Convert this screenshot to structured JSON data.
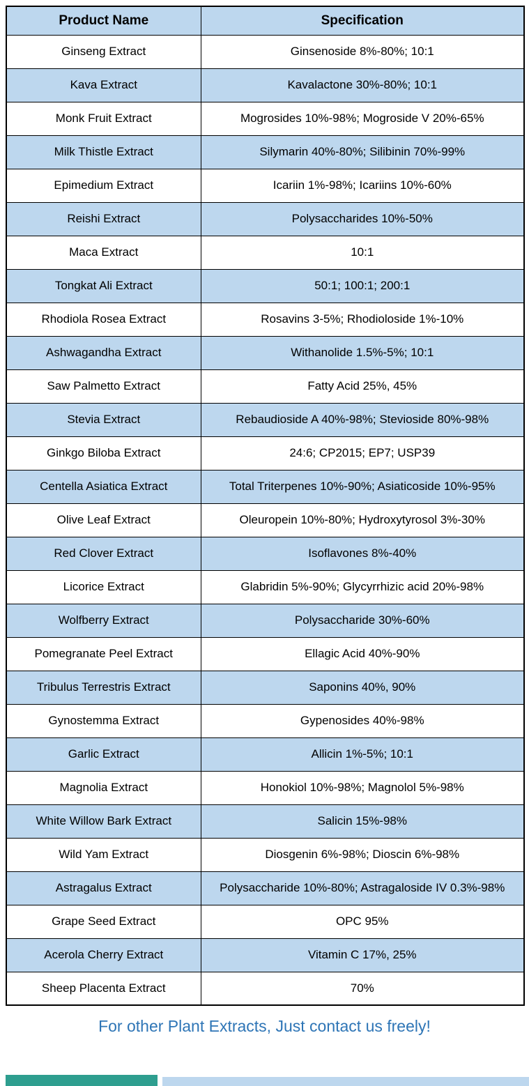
{
  "table": {
    "headers": [
      "Product Name",
      "Specification"
    ],
    "rows": [
      [
        "Ginseng Extract",
        "Ginsenoside 8%-80%; 10:1"
      ],
      [
        "Kava Extract",
        "Kavalactone 30%-80%; 10:1"
      ],
      [
        "Monk Fruit Extract",
        "Mogrosides 10%-98%; Mogroside V 20%-65%"
      ],
      [
        "Milk Thistle Extract",
        "Silymarin 40%-80%; Silibinin 70%-99%"
      ],
      [
        "Epimedium Extract",
        "Icariin 1%-98%; Icariins 10%-60%"
      ],
      [
        "Reishi Extract",
        "Polysaccharides 10%-50%"
      ],
      [
        "Maca Extract",
        "10:1"
      ],
      [
        "Tongkat Ali Extract",
        "50:1; 100:1; 200:1"
      ],
      [
        "Rhodiola Rosea Extract",
        "Rosavins 3-5%; Rhodioloside 1%-10%"
      ],
      [
        "Ashwagandha Extract",
        "Withanolide 1.5%-5%; 10:1"
      ],
      [
        "Saw Palmetto Extract",
        "Fatty Acid 25%, 45%"
      ],
      [
        "Stevia Extract",
        "Rebaudioside A 40%-98%; Stevioside 80%-98%"
      ],
      [
        "Ginkgo Biloba Extract",
        "24:6; CP2015; EP7; USP39"
      ],
      [
        "Centella Asiatica Extract",
        "Total Triterpenes 10%-90%; Asiaticoside 10%-95%"
      ],
      [
        "Olive Leaf Extract",
        "Oleuropein 10%-80%; Hydroxytyrosol 3%-30%"
      ],
      [
        "Red Clover Extract",
        "Isoflavones 8%-40%"
      ],
      [
        "Licorice Extract",
        "Glabridin 5%-90%; Glycyrrhizic acid 20%-98%"
      ],
      [
        "Wolfberry Extract",
        "Polysaccharide 30%-60%"
      ],
      [
        "Pomegranate Peel Extract",
        "Ellagic Acid 40%-90%"
      ],
      [
        "Tribulus Terrestris Extract",
        "Saponins 40%, 90%"
      ],
      [
        "Gynostemma Extract",
        "Gypenosides 40%-98%"
      ],
      [
        "Garlic Extract",
        "Allicin 1%-5%; 10:1"
      ],
      [
        "Magnolia Extract",
        "Honokiol 10%-98%; Magnolol 5%-98%"
      ],
      [
        "White Willow Bark Extract",
        "Salicin 15%-98%"
      ],
      [
        "Wild Yam Extract",
        "Diosgenin 6%-98%; Dioscin 6%-98%"
      ],
      [
        "Astragalus Extract",
        "Polysaccharide 10%-80%; Astragaloside IV 0.3%-98%"
      ],
      [
        "Grape Seed Extract",
        "OPC 95%"
      ],
      [
        "Acerola Cherry Extract",
        "Vitamin C 17%, 25%"
      ],
      [
        "Sheep Placenta Extract",
        "70%"
      ]
    ]
  },
  "footer": {
    "text": "For other Plant Extracts, Just contact us freely!"
  },
  "colors": {
    "header_bg": "#BDD7EE",
    "row_alt_bg": "#BDD7EE",
    "row_bg": "#FFFFFF",
    "border": "#000000",
    "footer_text": "#2E75B6",
    "teal_block": "#2E9E8F",
    "bottom_bar": "#BDD7EE"
  }
}
